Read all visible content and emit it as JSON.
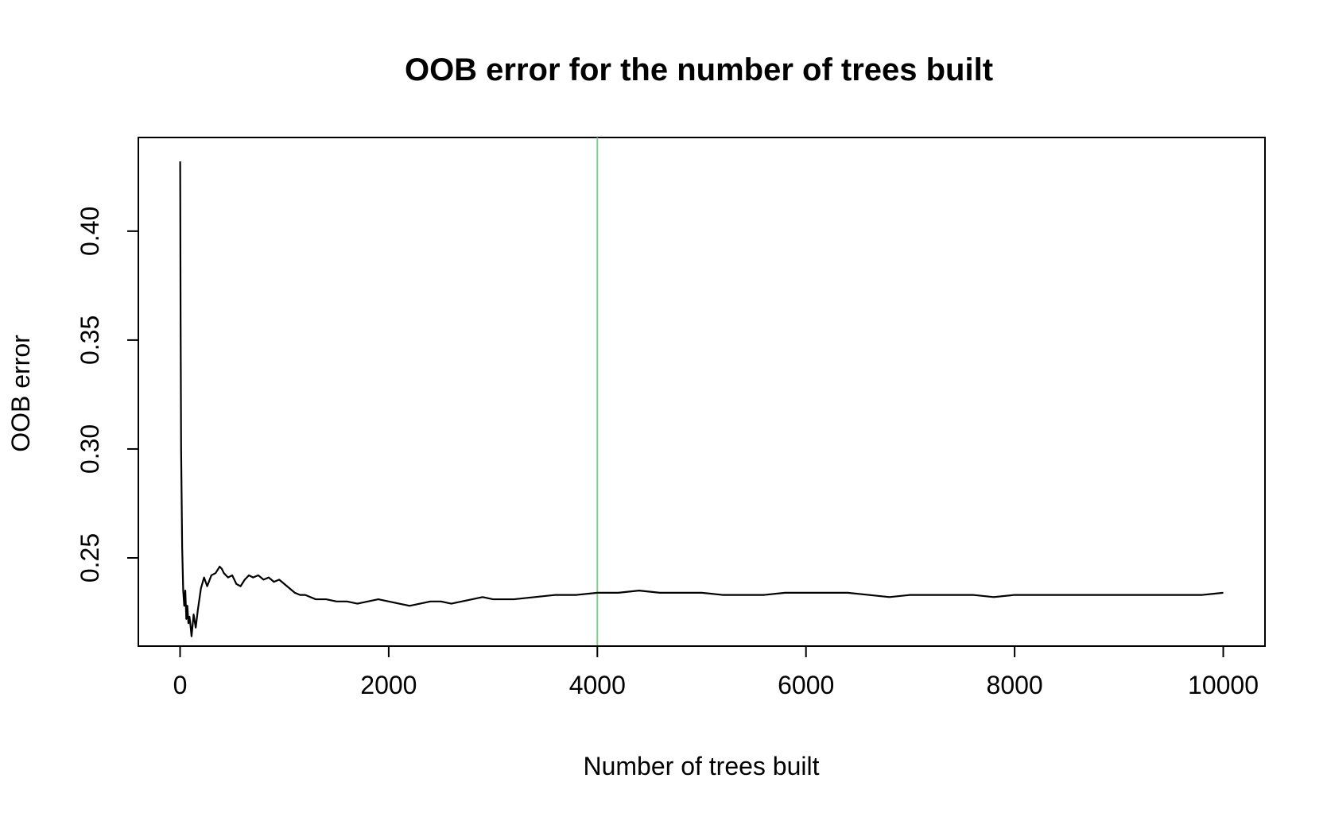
{
  "chart_data": {
    "type": "line",
    "title": "OOB error for the number of trees built",
    "xlabel": "Number of trees built",
    "ylabel": "OOB error",
    "xlim": [
      -400,
      10400
    ],
    "ylim": [
      0.2095,
      0.443
    ],
    "x_ticks": [
      0,
      2000,
      4000,
      6000,
      8000,
      10000
    ],
    "x_tick_labels": [
      "0",
      "2000",
      "4000",
      "6000",
      "8000",
      "10000"
    ],
    "y_ticks": [
      0.25,
      0.3,
      0.35,
      0.4
    ],
    "y_tick_labels": [
      "0.25",
      "0.30",
      "0.35",
      "0.40"
    ],
    "grid": false,
    "vline": {
      "x": 4000,
      "color": "#7fcf8f"
    },
    "series": [
      {
        "color": "#000000",
        "x": [
          1,
          5,
          10,
          20,
          30,
          40,
          50,
          60,
          70,
          80,
          90,
          100,
          110,
          120,
          130,
          150,
          170,
          200,
          230,
          260,
          300,
          340,
          380,
          400,
          420,
          460,
          500,
          540,
          580,
          620,
          660,
          700,
          750,
          800,
          850,
          900,
          950,
          1000,
          1050,
          1100,
          1150,
          1200,
          1300,
          1400,
          1500,
          1600,
          1700,
          1800,
          1900,
          2000,
          2100,
          2200,
          2300,
          2400,
          2500,
          2600,
          2700,
          2800,
          2900,
          3000,
          3200,
          3400,
          3600,
          3800,
          4000,
          4200,
          4400,
          4600,
          4800,
          5000,
          5200,
          5400,
          5600,
          5800,
          6000,
          6200,
          6400,
          6600,
          6800,
          7000,
          7200,
          7400,
          7600,
          7800,
          8000,
          8200,
          8400,
          8600,
          8800,
          9000,
          9200,
          9400,
          9600,
          9800,
          10000
        ],
        "values": [
          0.432,
          0.36,
          0.3,
          0.255,
          0.235,
          0.228,
          0.235,
          0.222,
          0.228,
          0.22,
          0.223,
          0.219,
          0.214,
          0.219,
          0.224,
          0.218,
          0.226,
          0.236,
          0.241,
          0.237,
          0.242,
          0.243,
          0.246,
          0.245,
          0.243,
          0.241,
          0.242,
          0.238,
          0.237,
          0.24,
          0.242,
          0.241,
          0.242,
          0.24,
          0.241,
          0.239,
          0.24,
          0.238,
          0.236,
          0.234,
          0.233,
          0.233,
          0.231,
          0.231,
          0.23,
          0.23,
          0.229,
          0.23,
          0.231,
          0.23,
          0.229,
          0.228,
          0.229,
          0.23,
          0.23,
          0.229,
          0.23,
          0.231,
          0.232,
          0.231,
          0.231,
          0.232,
          0.233,
          0.233,
          0.234,
          0.234,
          0.235,
          0.234,
          0.234,
          0.234,
          0.233,
          0.233,
          0.233,
          0.234,
          0.234,
          0.234,
          0.234,
          0.233,
          0.232,
          0.233,
          0.233,
          0.233,
          0.233,
          0.232,
          0.233,
          0.233,
          0.233,
          0.233,
          0.233,
          0.233,
          0.233,
          0.233,
          0.233,
          0.233,
          0.234
        ]
      }
    ]
  }
}
